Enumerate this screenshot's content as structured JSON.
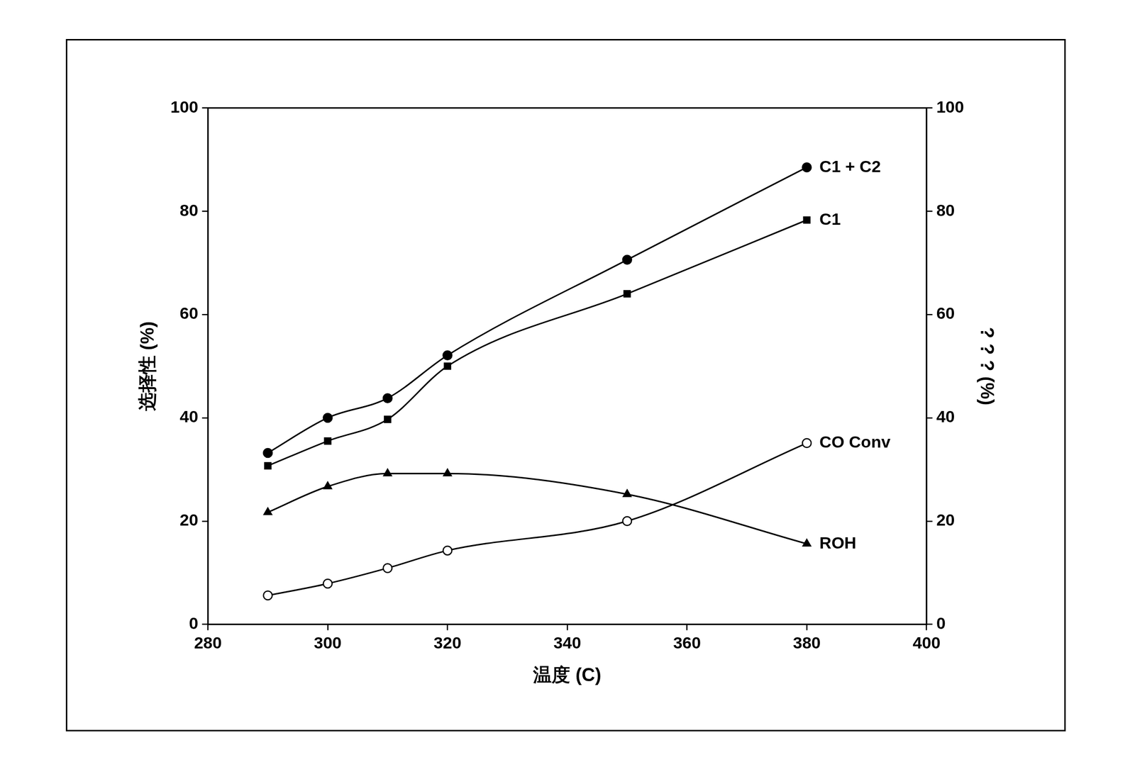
{
  "chart_data": {
    "type": "line",
    "xlabel": "温度 (C)",
    "ylabel": "选择性 (%)",
    "y2label": "? ? ? (%)",
    "x": [
      290,
      300,
      310,
      320,
      350,
      380
    ],
    "xlim": [
      280,
      400
    ],
    "xticks": [
      280,
      300,
      320,
      340,
      360,
      380,
      400
    ],
    "ylim": [
      0,
      100
    ],
    "yticks": [
      0,
      20,
      40,
      60,
      80,
      100
    ],
    "y2lim": [
      0,
      100
    ],
    "y2ticks": [
      0,
      20,
      40,
      60,
      80,
      100
    ],
    "grid": false,
    "series": [
      {
        "name": "C1 + C2",
        "color": "#000000",
        "marker": "circle",
        "values": [
          33.2,
          40.0,
          43.8,
          52.1,
          70.6,
          88.5
        ]
      },
      {
        "name": "C1",
        "color": "#000000",
        "marker": "square",
        "values": [
          30.7,
          35.5,
          39.7,
          50.0,
          64.0,
          78.3
        ]
      },
      {
        "name": "ROH",
        "color": "#000000",
        "marker": "triangle",
        "values": [
          21.7,
          26.7,
          29.2,
          29.2,
          25.2,
          15.6
        ]
      },
      {
        "name": "CO Conv",
        "color": "#000000",
        "marker": "open_circle",
        "axis": "y2",
        "values": [
          5.6,
          7.9,
          10.9,
          14.3,
          20.0,
          35.1
        ]
      }
    ]
  }
}
